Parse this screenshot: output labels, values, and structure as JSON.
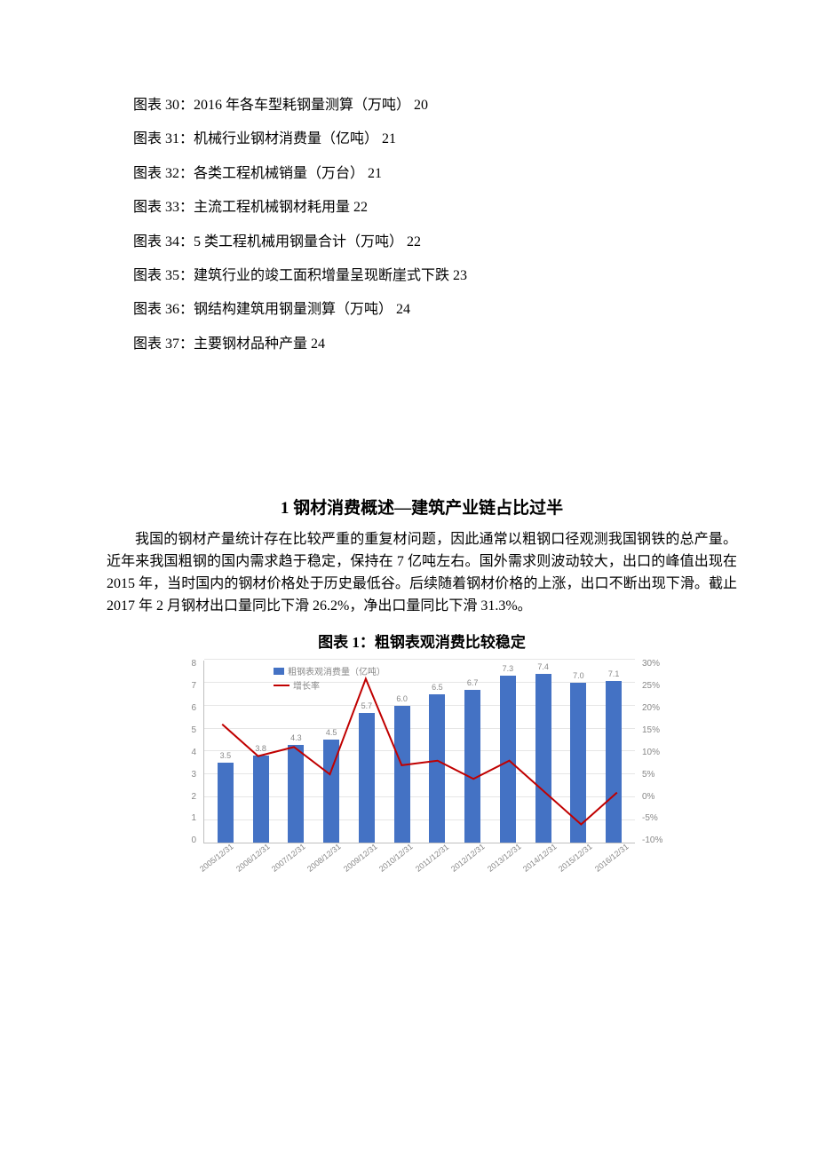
{
  "toc": [
    "图表 30：2016 年各车型耗钢量测算（万吨） 20",
    "图表 31：机械行业钢材消费量（亿吨） 21",
    "图表 32：各类工程机械销量（万台） 21",
    "图表 33：主流工程机械钢材耗用量 22",
    "图表 34：5 类工程机械用钢量合计（万吨） 22",
    "图表 35：建筑行业的竣工面积增量呈现断崖式下跌 23",
    "图表 36：钢结构建筑用钢量测算（万吨） 24",
    "图表 37：主要钢材品种产量 24"
  ],
  "heading": "1 钢材消费概述—建筑产业链占比过半",
  "paragraph": "我国的钢材产量统计存在比较严重的重复材问题，因此通常以粗钢口径观测我国钢铁的总产量。近年来我国粗钢的国内需求趋于稳定，保持在 7 亿吨左右。国外需求则波动较大，出口的峰值出现在 2015 年，当时国内的钢材价格处于历史最低谷。后续随着钢材价格的上涨，出口不断出现下滑。截止 2017 年 2 月钢材出口量同比下滑 26.2%，净出口量同比下滑 31.3%。",
  "chart_title": "图表 1：粗钢表观消费比较稳定",
  "chart": {
    "type": "bar+line",
    "categories": [
      "2005/12/31",
      "2006/12/31",
      "2007/12/31",
      "2008/12/31",
      "2009/12/31",
      "2010/12/31",
      "2011/12/31",
      "2012/12/31",
      "2013/12/31",
      "2014/12/31",
      "2015/12/31",
      "2016/12/31"
    ],
    "bar_values": [
      3.5,
      3.8,
      4.3,
      4.5,
      5.7,
      6.0,
      6.5,
      6.7,
      7.3,
      7.4,
      7.0,
      7.1
    ],
    "bar_color": "#4472c4",
    "line_values_pct": [
      16,
      9,
      11,
      5,
      26,
      7,
      8,
      4,
      8,
      1,
      -6,
      1
    ],
    "line_color": "#c00000",
    "y_left": {
      "min": 0,
      "max": 8,
      "step": 1
    },
    "y_right": {
      "min": -10,
      "max": 30,
      "step": 5,
      "suffix": "%"
    },
    "grid_color": "#e6e6e6",
    "axis_color": "#bfbfbf",
    "text_color": "#888888",
    "legend": {
      "bar_label": "粗钢表观消费量（亿吨）",
      "line_label": "增长率"
    },
    "plot_font_size": 10,
    "background_color": "#ffffff"
  }
}
